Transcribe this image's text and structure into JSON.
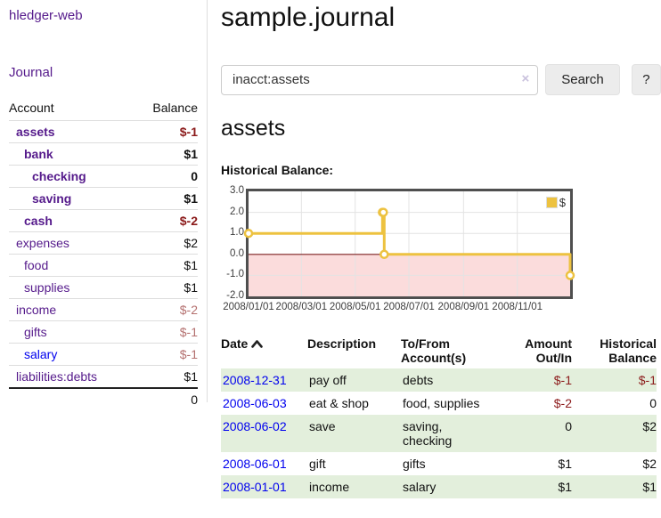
{
  "app": {
    "brand": "hledger-web"
  },
  "nav": {
    "journal": "Journal"
  },
  "sidebar": {
    "header": {
      "account": "Account",
      "balance": "Balance"
    },
    "accounts": [
      {
        "name": "assets",
        "depth": 1,
        "balance": "$-1",
        "bold": true,
        "negative": "strong"
      },
      {
        "name": "bank",
        "depth": 2,
        "balance": "$1",
        "bold": true,
        "negative": "none"
      },
      {
        "name": "checking",
        "depth": 3,
        "balance": "0",
        "bold": true,
        "negative": "none"
      },
      {
        "name": "saving",
        "depth": 3,
        "balance": "$1",
        "bold": true,
        "negative": "none"
      },
      {
        "name": "cash",
        "depth": 2,
        "balance": "$-2",
        "bold": true,
        "negative": "strong"
      },
      {
        "name": "expenses",
        "depth": 1,
        "balance": "$2",
        "bold": false,
        "negative": "none"
      },
      {
        "name": "food",
        "depth": 2,
        "balance": "$1",
        "bold": false,
        "negative": "none"
      },
      {
        "name": "supplies",
        "depth": 2,
        "balance": "$1",
        "bold": false,
        "negative": "none"
      },
      {
        "name": "income",
        "depth": 1,
        "balance": "$-2",
        "bold": false,
        "negative": "soft"
      },
      {
        "name": "gifts",
        "depth": 2,
        "balance": "$-1",
        "bold": false,
        "negative": "soft"
      },
      {
        "name": "salary",
        "depth": 2,
        "balance": "$-1",
        "bold": false,
        "negative": "soft",
        "link_style": "unvisited"
      },
      {
        "name": "liabilities:debts",
        "depth": 1,
        "balance": "$1",
        "bold": false,
        "negative": "none"
      }
    ],
    "total": "0"
  },
  "header": {
    "title": "sample.journal"
  },
  "search": {
    "value": "inacct:assets",
    "clear_icon": "×",
    "button_label": "Search",
    "help_label": "?"
  },
  "account_page": {
    "title": "assets",
    "chart_heading": "Historical Balance:"
  },
  "chart_data": {
    "type": "line",
    "step": true,
    "title": "Historical Balance",
    "series": [
      {
        "name": "$",
        "color": "#edc240",
        "points": [
          {
            "date": "2008-01-01",
            "day": 0,
            "value": 1
          },
          {
            "date": "2008-06-01",
            "day": 152,
            "value": 2
          },
          {
            "date": "2008-06-02",
            "day": 153,
            "value": 2
          },
          {
            "date": "2008-06-03",
            "day": 154,
            "value": 0
          },
          {
            "date": "2008-12-31",
            "day": 365,
            "value": -1
          }
        ]
      }
    ],
    "xlim_days": [
      0,
      365
    ],
    "ylim": [
      -2,
      3
    ],
    "yticks": [
      3,
      2,
      1,
      0,
      -1,
      -2
    ],
    "ytick_labels": [
      "3.0",
      "2.0",
      "1.0",
      "0.0",
      "-1.0",
      "-2.0"
    ],
    "xticks": [
      {
        "label": "2008/01/01",
        "day": 0
      },
      {
        "label": "2008/03/01",
        "day": 60
      },
      {
        "label": "2008/05/01",
        "day": 121
      },
      {
        "label": "2008/07/01",
        "day": 182
      },
      {
        "label": "2008/09/01",
        "day": 244
      },
      {
        "label": "2008/11/01",
        "day": 305
      }
    ],
    "grid": true,
    "legend_position": "top-right",
    "colors": {
      "negative_region": "#fbdcdc",
      "zero_line": "#7d2020",
      "gridline": "#e3e3e3",
      "border": "#4f4f4f"
    }
  },
  "register": {
    "columns": [
      "Date",
      "Description",
      "To/From Account(s)",
      "Amount Out/In",
      "Historical Balance"
    ],
    "rows": [
      {
        "date": "2008-12-31",
        "description": "pay off",
        "accounts": "debts",
        "amount": "$-1",
        "balance": "$-1",
        "amount_negative": true,
        "balance_negative": true
      },
      {
        "date": "2008-06-03",
        "description": "eat & shop",
        "accounts": "food, supplies",
        "amount": "$-2",
        "balance": "0",
        "amount_negative": true,
        "balance_negative": false
      },
      {
        "date": "2008-06-02",
        "description": "save",
        "accounts": "saving,\nchecking",
        "amount": "0",
        "balance": "$2",
        "amount_negative": false,
        "balance_negative": false
      },
      {
        "date": "2008-06-01",
        "description": "gift",
        "accounts": "gifts",
        "amount": "$1",
        "balance": "$2",
        "amount_negative": false,
        "balance_negative": false
      },
      {
        "date": "2008-01-01",
        "description": "income",
        "accounts": "salary",
        "amount": "$1",
        "balance": "$1",
        "amount_negative": false,
        "balance_negative": false
      }
    ]
  }
}
